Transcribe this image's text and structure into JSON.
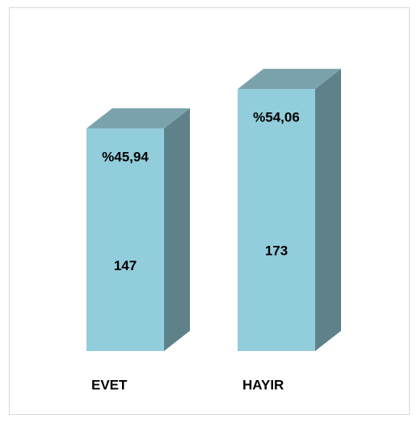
{
  "chart_data": {
    "type": "bar3d",
    "categories": [
      "EVET",
      "HAYIR"
    ],
    "values": [
      147,
      173
    ],
    "shares": [
      45.94,
      54.06
    ],
    "share_labels": [
      "%45,94",
      "%54,06"
    ],
    "color": "#92cddc"
  }
}
